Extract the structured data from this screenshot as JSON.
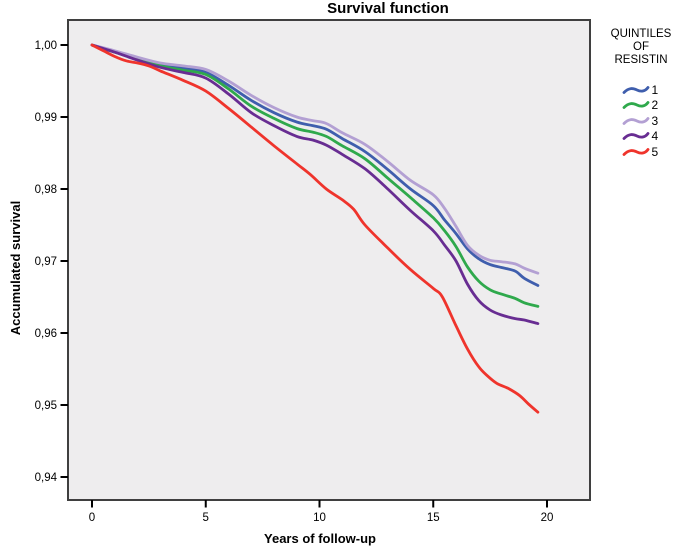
{
  "title": "Survival function",
  "y_axis_title": "Accumulated survival",
  "x_axis_title": "Years of follow-up",
  "legend": {
    "title": "QUINTILES\nOF\nRESISTIN",
    "items": [
      {
        "label": "1",
        "color": "#3f5ead"
      },
      {
        "label": "2",
        "color": "#2fa94c"
      },
      {
        "label": "3",
        "color": "#b3a0d3"
      },
      {
        "label": "4",
        "color": "#682d92"
      },
      {
        "label": "5",
        "color": "#ef342c"
      }
    ]
  },
  "colors": {
    "plot_bg": "#eeedee",
    "plot_border": "#3f3f3f",
    "tick": "#000000",
    "text": "#000000"
  },
  "chart_data": {
    "type": "line",
    "title": "Survival function",
    "xlabel": "Years of follow-up",
    "ylabel": "Accumulated survival",
    "xlim": [
      -1.06,
      21.9
    ],
    "ylim": [
      0.9368,
      1.0035
    ],
    "grid": false,
    "legend_position": "right",
    "legend_title": "QUINTILES OF RESISTIN",
    "x_ticks": [
      {
        "value": 0,
        "label": "0"
      },
      {
        "value": 5,
        "label": "5"
      },
      {
        "value": 10,
        "label": "10"
      },
      {
        "value": 15,
        "label": "15"
      },
      {
        "value": 20,
        "label": "20"
      }
    ],
    "y_ticks": [
      {
        "value": 1.0,
        "label": "1,00"
      },
      {
        "value": 0.99,
        "label": "0,99"
      },
      {
        "value": 0.98,
        "label": "0,98"
      },
      {
        "value": 0.97,
        "label": "0,97"
      },
      {
        "value": 0.96,
        "label": "0,96"
      },
      {
        "value": 0.95,
        "label": "0,95"
      },
      {
        "value": 0.94,
        "label": "0,94"
      }
    ],
    "series": [
      {
        "name": "1",
        "color": "#3f5ead",
        "points": [
          [
            0,
            1.0
          ],
          [
            1,
            0.9991
          ],
          [
            2,
            0.9981
          ],
          [
            3,
            0.9973
          ],
          [
            4,
            0.9968
          ],
          [
            5,
            0.9962
          ],
          [
            6,
            0.9944
          ],
          [
            7,
            0.9923
          ],
          [
            8,
            0.9906
          ],
          [
            9,
            0.9893
          ],
          [
            9.7,
            0.9888
          ],
          [
            10.3,
            0.9883
          ],
          [
            11,
            0.987
          ],
          [
            12,
            0.9852
          ],
          [
            13,
            0.9827
          ],
          [
            14,
            0.98
          ],
          [
            15,
            0.9777
          ],
          [
            15.5,
            0.9757
          ],
          [
            16,
            0.9738
          ],
          [
            16.5,
            0.9717
          ],
          [
            17,
            0.9703
          ],
          [
            17.5,
            0.9695
          ],
          [
            18,
            0.9691
          ],
          [
            18.6,
            0.9686
          ],
          [
            19,
            0.9676
          ],
          [
            19.6,
            0.9666
          ]
        ]
      },
      {
        "name": "2",
        "color": "#2fa94c",
        "points": [
          [
            0,
            1.0
          ],
          [
            1,
            0.999
          ],
          [
            2,
            0.998
          ],
          [
            3,
            0.9971
          ],
          [
            4,
            0.9965
          ],
          [
            5,
            0.9959
          ],
          [
            6,
            0.9939
          ],
          [
            7,
            0.9915
          ],
          [
            8,
            0.9898
          ],
          [
            9,
            0.9884
          ],
          [
            9.7,
            0.9879
          ],
          [
            10.3,
            0.9873
          ],
          [
            11,
            0.986
          ],
          [
            12,
            0.9842
          ],
          [
            13,
            0.9815
          ],
          [
            14,
            0.9788
          ],
          [
            15,
            0.976
          ],
          [
            15.5,
            0.9742
          ],
          [
            16,
            0.972
          ],
          [
            16.5,
            0.9692
          ],
          [
            17,
            0.9672
          ],
          [
            17.5,
            0.966
          ],
          [
            18,
            0.9654
          ],
          [
            18.6,
            0.9648
          ],
          [
            19,
            0.9642
          ],
          [
            19.6,
            0.9637
          ]
        ]
      },
      {
        "name": "3",
        "color": "#b3a0d3",
        "points": [
          [
            0,
            1.0
          ],
          [
            1,
            0.9992
          ],
          [
            2,
            0.9983
          ],
          [
            3,
            0.9975
          ],
          [
            4,
            0.9971
          ],
          [
            5,
            0.9966
          ],
          [
            6,
            0.995
          ],
          [
            7,
            0.993
          ],
          [
            8,
            0.9913
          ],
          [
            9,
            0.99
          ],
          [
            9.7,
            0.9895
          ],
          [
            10.3,
            0.9891
          ],
          [
            11,
            0.9878
          ],
          [
            12,
            0.9862
          ],
          [
            13,
            0.9838
          ],
          [
            14,
            0.9812
          ],
          [
            15,
            0.9792
          ],
          [
            15.5,
            0.9773
          ],
          [
            16,
            0.9748
          ],
          [
            16.5,
            0.9722
          ],
          [
            17,
            0.9708
          ],
          [
            17.5,
            0.9701
          ],
          [
            18,
            0.9699
          ],
          [
            18.6,
            0.9696
          ],
          [
            19,
            0.969
          ],
          [
            19.6,
            0.9683
          ]
        ]
      },
      {
        "name": "4",
        "color": "#682d92",
        "points": [
          [
            0,
            1.0
          ],
          [
            1,
            0.999
          ],
          [
            2,
            0.9979
          ],
          [
            3,
            0.9969
          ],
          [
            4,
            0.9962
          ],
          [
            5,
            0.9954
          ],
          [
            6,
            0.9932
          ],
          [
            7,
            0.9906
          ],
          [
            8,
            0.9888
          ],
          [
            9,
            0.9873
          ],
          [
            9.7,
            0.9868
          ],
          [
            10.3,
            0.9861
          ],
          [
            11,
            0.9848
          ],
          [
            12,
            0.9828
          ],
          [
            13,
            0.98
          ],
          [
            14,
            0.977
          ],
          [
            15,
            0.9742
          ],
          [
            15.5,
            0.9722
          ],
          [
            16,
            0.97
          ],
          [
            16.5,
            0.9668
          ],
          [
            17,
            0.9645
          ],
          [
            17.5,
            0.9632
          ],
          [
            18,
            0.9625
          ],
          [
            18.6,
            0.962
          ],
          [
            19,
            0.9618
          ],
          [
            19.6,
            0.9613
          ]
        ]
      },
      {
        "name": "5",
        "color": "#ef342c",
        "points": [
          [
            0,
            1.0
          ],
          [
            0.5,
            0.9992
          ],
          [
            1,
            0.9984
          ],
          [
            1.5,
            0.9978
          ],
          [
            2,
            0.9975
          ],
          [
            2.5,
            0.9971
          ],
          [
            3,
            0.9964
          ],
          [
            4,
            0.9951
          ],
          [
            5,
            0.9936
          ],
          [
            6,
            0.9912
          ],
          [
            7,
            0.9886
          ],
          [
            8,
            0.986
          ],
          [
            9,
            0.9835
          ],
          [
            9.6,
            0.982
          ],
          [
            10.3,
            0.98
          ],
          [
            11,
            0.9785
          ],
          [
            11.5,
            0.9772
          ],
          [
            12,
            0.975
          ],
          [
            13,
            0.9718
          ],
          [
            14,
            0.9688
          ],
          [
            15,
            0.9662
          ],
          [
            15.4,
            0.965
          ],
          [
            16,
            0.961
          ],
          [
            16.5,
            0.9578
          ],
          [
            17,
            0.9553
          ],
          [
            17.4,
            0.954
          ],
          [
            17.8,
            0.953
          ],
          [
            18.3,
            0.9523
          ],
          [
            18.8,
            0.9513
          ],
          [
            19.2,
            0.9501
          ],
          [
            19.6,
            0.949
          ]
        ]
      }
    ]
  }
}
